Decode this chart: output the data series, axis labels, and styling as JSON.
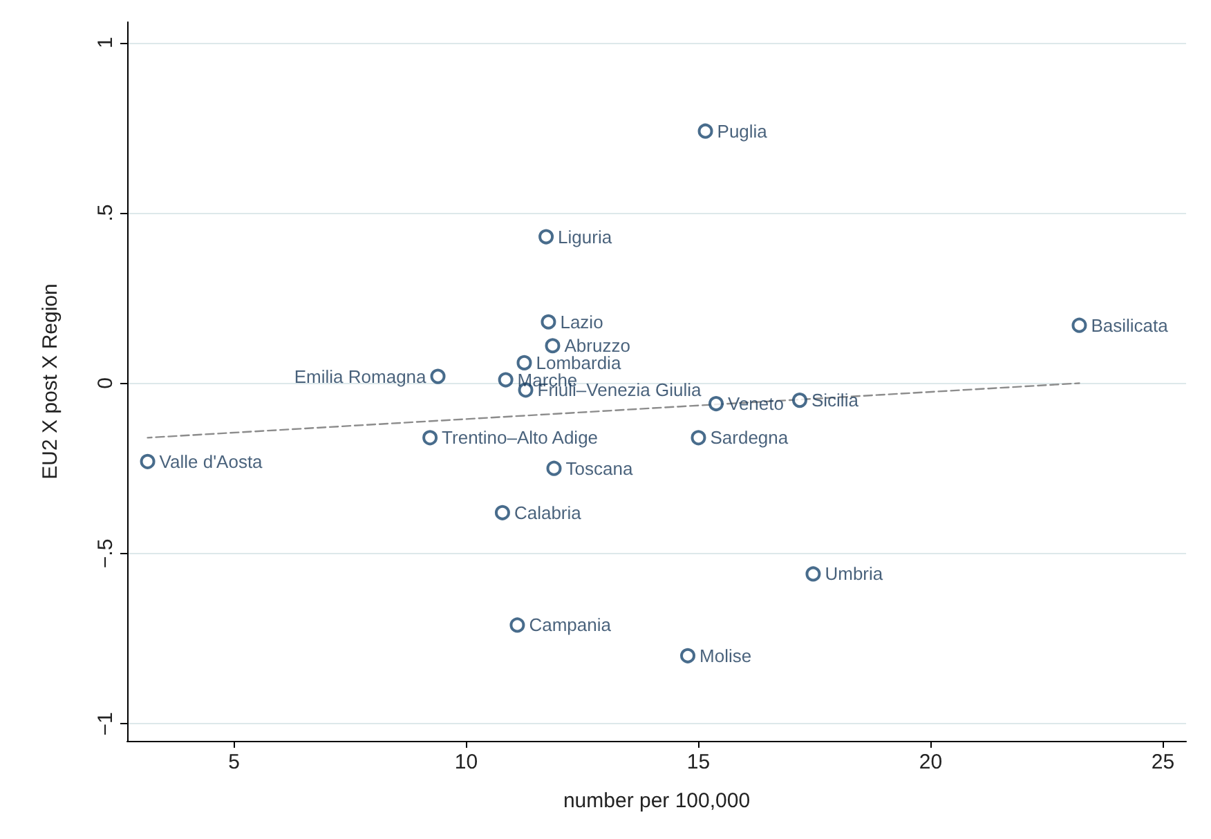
{
  "chart_data": {
    "type": "scatter",
    "xlabel": "number per 100,000",
    "ylabel": "EU2 X post X Region",
    "xlim": [
      2.7,
      25.5
    ],
    "xticks": [
      5,
      10,
      15,
      20,
      25
    ],
    "ylim": [
      -1.05,
      1.06
    ],
    "yticks": [
      {
        "value": -1,
        "label": "−1"
      },
      {
        "value": -0.5,
        "label": "−.5"
      },
      0,
      {
        "value": 0.5,
        "label": ".5"
      },
      1
    ],
    "grid": "y",
    "marker": "circle",
    "series": [
      {
        "type": "scatter",
        "color": "#1a476f",
        "x": [
          15.15,
          11.72,
          11.77,
          11.86,
          11.25,
          9.39,
          10.85,
          11.28,
          23.2,
          15.38,
          17.18,
          9.22,
          15.0,
          3.14,
          11.89,
          10.78,
          17.47,
          11.1,
          14.77
        ],
        "values": [
          0.74,
          0.43,
          0.18,
          0.11,
          0.06,
          0.02,
          0.01,
          -0.02,
          0.17,
          -0.06,
          -0.05,
          -0.16,
          -0.16,
          -0.23,
          -0.25,
          -0.38,
          -0.56,
          -0.71,
          -0.8
        ]
      },
      {
        "type": "line",
        "color": "#8c8c8c",
        "line_style": "dashed",
        "marker": "none",
        "x": [
          3.14,
          23.2
        ],
        "values": [
          -0.16,
          0.0
        ]
      }
    ],
    "annotations": [
      {
        "text": "Puglia",
        "x": 15.15,
        "y": 0.74
      },
      {
        "text": "Liguria",
        "x": 11.72,
        "y": 0.43
      },
      {
        "text": "Lazio",
        "x": 11.77,
        "y": 0.18
      },
      {
        "text": "Abruzzo",
        "x": 11.86,
        "y": 0.11
      },
      {
        "text": "Lombardia",
        "x": 11.25,
        "y": 0.06
      },
      {
        "text": "Emilia Romagna",
        "x": 9.39,
        "y": 0.02
      },
      {
        "text": "Marche",
        "x": 10.85,
        "y": 0.01
      },
      {
        "text": "Friuli–Venezia Giulia",
        "x": 11.28,
        "y": -0.02
      },
      {
        "text": "Basilicata",
        "x": 23.2,
        "y": 0.17
      },
      {
        "text": "Veneto",
        "x": 15.38,
        "y": -0.06
      },
      {
        "text": "Sicilia",
        "x": 17.18,
        "y": -0.05
      },
      {
        "text": "Trentino–Alto Adige",
        "x": 9.22,
        "y": -0.16
      },
      {
        "text": "Sardegna",
        "x": 15.0,
        "y": -0.16
      },
      {
        "text": "Valle d'Aosta",
        "x": 3.14,
        "y": -0.23
      },
      {
        "text": "Toscana",
        "x": 11.89,
        "y": -0.25
      },
      {
        "text": "Calabria",
        "x": 10.78,
        "y": -0.38
      },
      {
        "text": "Umbria",
        "x": 17.47,
        "y": -0.56
      },
      {
        "text": "Campania",
        "x": 11.1,
        "y": -0.71
      },
      {
        "text": "Molise",
        "x": 14.77,
        "y": -0.8
      }
    ]
  }
}
